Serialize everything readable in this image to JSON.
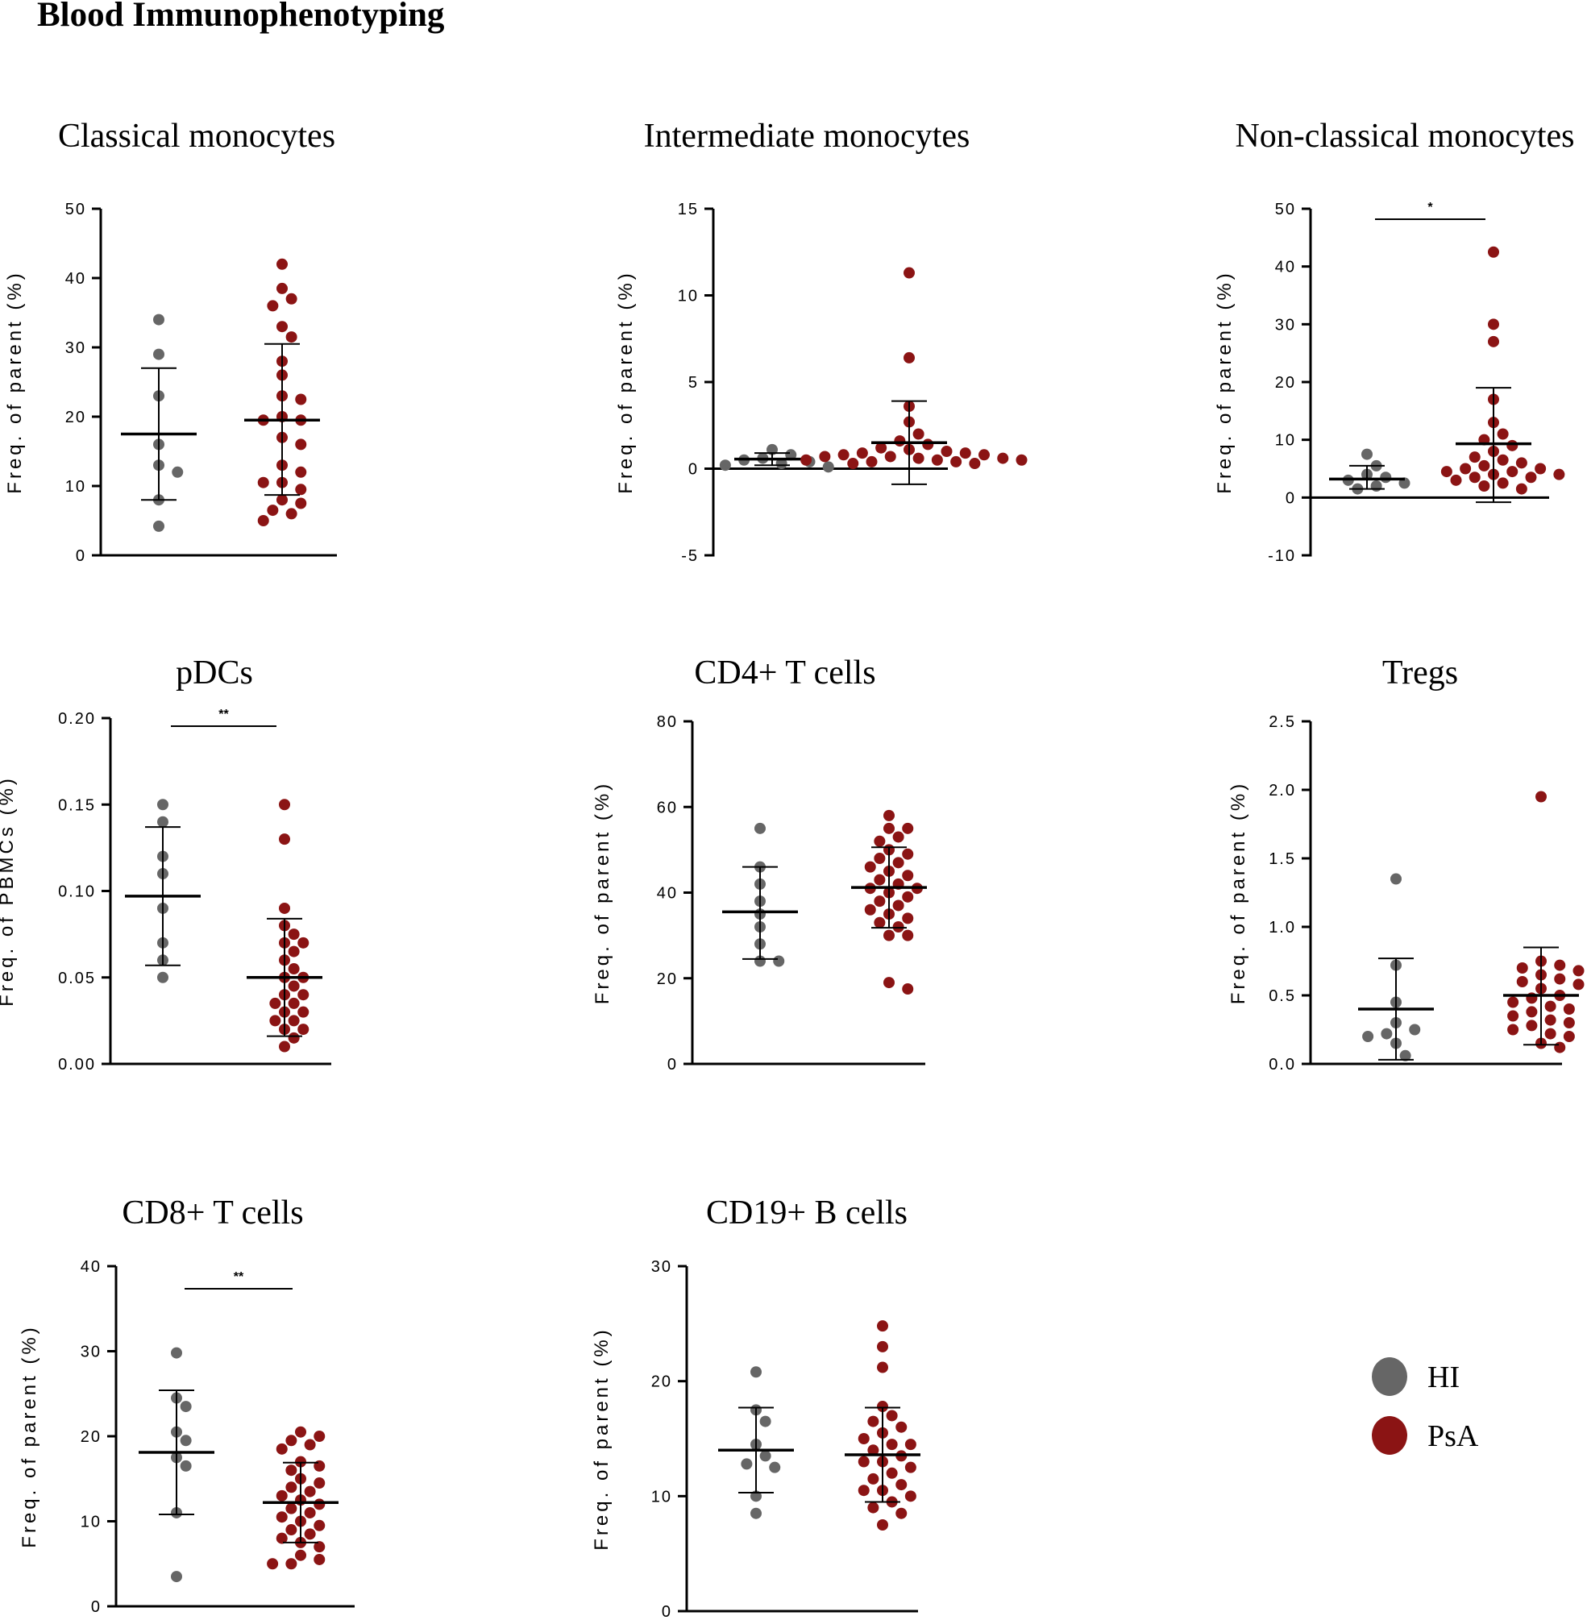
{
  "figure_title": "Blood Immunophenotyping",
  "colors": {
    "HI": "#666666",
    "PsA": "#8b1414",
    "axis": "#000000"
  },
  "legend": {
    "items": [
      {
        "label": "HI",
        "group": "HI"
      },
      {
        "label": "PsA",
        "group": "PsA"
      }
    ]
  },
  "chart_data": [
    {
      "type": "scatter",
      "title": "Classical monocytes",
      "ylabel": "Freq. of parent (%)",
      "ylim": [
        0,
        50
      ],
      "yticks": [
        0,
        10,
        20,
        30,
        40,
        50
      ],
      "ytick_labels": [
        "0",
        "10",
        "20",
        "30",
        "40",
        "50"
      ],
      "series": [
        {
          "name": "HI",
          "values": [
            34,
            29,
            23,
            16,
            13,
            12,
            8,
            4.2
          ],
          "mean": 17.5,
          "sd_low": 8.0,
          "sd_high": 27.0
        },
        {
          "name": "PsA",
          "values": [
            42,
            38.5,
            37,
            36,
            33,
            31.5,
            28,
            26,
            23,
            22.5,
            20,
            19.5,
            19.5,
            17,
            16,
            13,
            12,
            10.5,
            10.5,
            9.5,
            8,
            7.5,
            6.5,
            6,
            5
          ],
          "mean": 19.5,
          "sd_low": 8.7,
          "sd_high": 30.5
        }
      ]
    },
    {
      "type": "scatter",
      "title": "Intermediate monocytes",
      "ylabel": "Freq. of parent (%)",
      "ylim": [
        -5,
        15
      ],
      "yticks": [
        -5,
        0,
        5,
        10,
        15
      ],
      "ytick_labels": [
        "-5",
        "0",
        "5",
        "10",
        "15"
      ],
      "series": [
        {
          "name": "HI",
          "values": [
            1.1,
            0.8,
            0.6,
            0.5,
            0.4,
            0.3,
            0.2,
            0.1
          ],
          "mean": 0.55,
          "sd_low": 0.2,
          "sd_high": 0.9
        },
        {
          "name": "PsA",
          "values": [
            11.3,
            6.4,
            3.6,
            2.7,
            2.0,
            1.6,
            1.4,
            1.2,
            1.1,
            1.0,
            0.9,
            0.9,
            0.8,
            0.8,
            0.7,
            0.7,
            0.6,
            0.6,
            0.5,
            0.5,
            0.5,
            0.4,
            0.4,
            0.3,
            0.3
          ],
          "mean": 1.5,
          "sd_low": -0.9,
          "sd_high": 3.9
        }
      ]
    },
    {
      "type": "scatter",
      "title": "Non-classical monocytes",
      "ylabel": "Freq. of parent (%)",
      "ylim": [
        -10,
        50
      ],
      "yticks": [
        -10,
        0,
        10,
        20,
        30,
        40,
        50
      ],
      "ytick_labels": [
        "-10",
        "0",
        "10",
        "20",
        "30",
        "40",
        "50"
      ],
      "significance": {
        "label": "*"
      },
      "series": [
        {
          "name": "HI",
          "values": [
            7.5,
            5.5,
            4.0,
            3.5,
            3.0,
            2.5,
            2.0,
            1.5
          ],
          "mean": 3.2,
          "sd_low": 1.5,
          "sd_high": 5.5
        },
        {
          "name": "PsA",
          "values": [
            42.5,
            30,
            27,
            17,
            13,
            11,
            10,
            9,
            8,
            7,
            6.5,
            6,
            5.5,
            5,
            5,
            4.5,
            4.5,
            4,
            4,
            3.5,
            3.5,
            3,
            2.5,
            2,
            1.5
          ],
          "mean": 9.3,
          "sd_low": -0.8,
          "sd_high": 19.0
        }
      ]
    },
    {
      "type": "scatter",
      "title": "pDCs",
      "ylabel": "Freq. of PBMCs (%)",
      "ylim": [
        0,
        0.2
      ],
      "yticks": [
        0,
        0.05,
        0.1,
        0.15,
        0.2
      ],
      "ytick_labels": [
        "0.00",
        "0.05",
        "0.10",
        "0.15",
        "0.20"
      ],
      "significance": {
        "label": "**"
      },
      "series": [
        {
          "name": "HI",
          "values": [
            0.15,
            0.14,
            0.12,
            0.11,
            0.09,
            0.07,
            0.06,
            0.05
          ],
          "mean": 0.097,
          "sd_low": 0.057,
          "sd_high": 0.137
        },
        {
          "name": "PsA",
          "values": [
            0.15,
            0.13,
            0.09,
            0.08,
            0.075,
            0.07,
            0.07,
            0.065,
            0.06,
            0.055,
            0.05,
            0.05,
            0.045,
            0.04,
            0.04,
            0.035,
            0.035,
            0.03,
            0.03,
            0.025,
            0.025,
            0.02,
            0.02,
            0.015,
            0.01
          ],
          "mean": 0.05,
          "sd_low": 0.016,
          "sd_high": 0.084
        }
      ]
    },
    {
      "type": "scatter",
      "title": "CD4+ T cells",
      "ylabel": "Freq. of parent (%)",
      "ylim": [
        0,
        80
      ],
      "yticks": [
        0,
        20,
        40,
        60,
        80
      ],
      "ytick_labels": [
        "0",
        "20",
        "40",
        "60",
        "80"
      ],
      "series": [
        {
          "name": "HI",
          "values": [
            55,
            46,
            42,
            38,
            35,
            32,
            28,
            24,
            24
          ],
          "mean": 35.5,
          "sd_low": 24.5,
          "sd_high": 46.0
        },
        {
          "name": "PsA",
          "values": [
            58,
            55,
            55,
            53,
            52,
            50,
            49,
            48,
            47,
            46,
            45,
            44,
            43,
            42,
            41,
            41,
            40,
            39,
            38,
            37,
            36,
            35,
            34,
            33,
            32,
            30,
            30,
            19,
            17.5
          ],
          "mean": 41.2,
          "sd_low": 31.8,
          "sd_high": 50.6
        }
      ]
    },
    {
      "type": "scatter",
      "title": "Tregs",
      "ylabel": "Freq. of parent (%)",
      "ylim": [
        0,
        2.5
      ],
      "yticks": [
        0,
        0.5,
        1,
        1.5,
        2,
        2.5
      ],
      "ytick_labels": [
        "0.0",
        "0.5",
        "1.0",
        "1.5",
        "2.0",
        "2.5"
      ],
      "series": [
        {
          "name": "HI",
          "values": [
            1.35,
            0.72,
            0.45,
            0.3,
            0.25,
            0.22,
            0.2,
            0.15,
            0.06
          ],
          "mean": 0.4,
          "sd_low": 0.03,
          "sd_high": 0.77
        },
        {
          "name": "PsA",
          "values": [
            1.95,
            0.75,
            0.72,
            0.7,
            0.68,
            0.65,
            0.62,
            0.6,
            0.58,
            0.55,
            0.5,
            0.48,
            0.45,
            0.42,
            0.4,
            0.38,
            0.35,
            0.32,
            0.3,
            0.28,
            0.25,
            0.22,
            0.2,
            0.15,
            0.12
          ],
          "mean": 0.5,
          "sd_low": 0.14,
          "sd_high": 0.85
        }
      ]
    },
    {
      "type": "scatter",
      "title": "CD8+ T cells",
      "ylabel": "Freq. of parent (%)",
      "ylim": [
        0,
        40
      ],
      "yticks": [
        0,
        10,
        20,
        30,
        40
      ],
      "ytick_labels": [
        "0",
        "10",
        "20",
        "30",
        "40"
      ],
      "significance": {
        "label": "**"
      },
      "series": [
        {
          "name": "HI",
          "values": [
            29.8,
            24.5,
            23.5,
            20.5,
            19.5,
            17.5,
            16.5,
            11,
            3.5
          ],
          "mean": 18.1,
          "sd_low": 10.8,
          "sd_high": 25.4
        },
        {
          "name": "PsA",
          "values": [
            20.5,
            20,
            19.5,
            19,
            18.5,
            17,
            16.5,
            16,
            15,
            14.5,
            14,
            13.5,
            13,
            12.5,
            12,
            11.5,
            11,
            10.5,
            10,
            9.5,
            9,
            8.5,
            8,
            7.5,
            7,
            6,
            5.5,
            5,
            5
          ],
          "mean": 12.2,
          "sd_low": 7.5,
          "sd_high": 16.9
        }
      ]
    },
    {
      "type": "scatter",
      "title": "CD19+ B cells",
      "ylabel": "Freq. of parent (%)",
      "ylim": [
        0,
        30
      ],
      "yticks": [
        0,
        10,
        20,
        30
      ],
      "ytick_labels": [
        "0",
        "10",
        "20",
        "30"
      ],
      "series": [
        {
          "name": "HI",
          "values": [
            20.8,
            17.5,
            16.5,
            14.5,
            13.5,
            12.8,
            12.5,
            10,
            8.5
          ],
          "mean": 14.0,
          "sd_low": 10.3,
          "sd_high": 17.7
        },
        {
          "name": "PsA",
          "values": [
            24.8,
            23,
            21.2,
            17.8,
            17,
            16.5,
            16,
            15.5,
            15,
            14.5,
            14.5,
            14,
            13.5,
            13,
            13,
            12.5,
            12,
            11.5,
            11,
            10.5,
            10.5,
            10,
            9.5,
            9,
            8.5,
            7.5
          ],
          "mean": 13.6,
          "sd_low": 9.5,
          "sd_high": 17.7
        }
      ]
    }
  ]
}
